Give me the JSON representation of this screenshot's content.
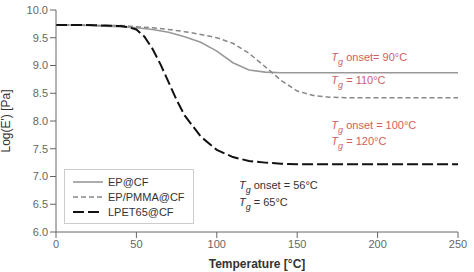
{
  "chart_data": {
    "type": "line",
    "xlabel": "Temperature [°C]",
    "ylabel": "Log(E') [Pa]",
    "xlim": [
      0,
      250
    ],
    "ylim": [
      6,
      10
    ],
    "xticks": [
      0,
      50,
      100,
      150,
      200,
      250
    ],
    "yticks": [
      {
        "value": 6,
        "label": "6.0"
      },
      {
        "value": 6.5,
        "label": "6.5"
      },
      {
        "value": 7,
        "label": "7.0"
      },
      {
        "value": 7.5,
        "label": "7.5"
      },
      {
        "value": 8,
        "label": "8.0"
      },
      {
        "value": 8.5,
        "label": "8.5"
      },
      {
        "value": 9,
        "label": "9.0"
      },
      {
        "value": 9.5,
        "label": "9.5"
      },
      {
        "value": 10,
        "label": "10.0"
      }
    ],
    "grid": false,
    "legend": "lower left",
    "series": [
      {
        "name": "EP@CF",
        "color": "#999999",
        "line_style": "solid",
        "x": [
          0,
          5,
          10,
          20,
          30,
          40,
          50,
          60,
          70,
          80,
          90,
          100,
          110,
          120,
          130,
          140,
          150,
          160,
          170,
          180,
          190,
          200,
          210,
          220,
          230,
          240,
          250
        ],
        "values": [
          9.73,
          9.73,
          9.73,
          9.72,
          9.71,
          9.7,
          9.68,
          9.65,
          9.6,
          9.52,
          9.42,
          9.26,
          9.05,
          8.92,
          8.88,
          8.87,
          8.87,
          8.87,
          8.87,
          8.87,
          8.87,
          8.87,
          8.87,
          8.87,
          8.87,
          8.87,
          8.87
        ]
      },
      {
        "name": "EP/PMMA@CF",
        "color": "#888888",
        "line_style": "dashed",
        "x": [
          0,
          5,
          10,
          20,
          30,
          40,
          50,
          60,
          70,
          80,
          90,
          100,
          110,
          120,
          130,
          140,
          150,
          160,
          170,
          180,
          190,
          200,
          210,
          220,
          230,
          240,
          250
        ],
        "values": [
          9.73,
          9.73,
          9.73,
          9.73,
          9.72,
          9.72,
          9.7,
          9.68,
          9.65,
          9.61,
          9.56,
          9.5,
          9.4,
          9.22,
          8.98,
          8.73,
          8.54,
          8.46,
          8.43,
          8.42,
          8.42,
          8.42,
          8.42,
          8.42,
          8.42,
          8.42,
          8.42
        ]
      },
      {
        "name": "LPET65@CF",
        "color": "#111111",
        "line_style": "longdash",
        "x": [
          0,
          5,
          10,
          20,
          30,
          40,
          45,
          50,
          55,
          60,
          65,
          70,
          75,
          80,
          90,
          100,
          110,
          120,
          130,
          140,
          150,
          160,
          170,
          180,
          190,
          200,
          210,
          220,
          230,
          240,
          250
        ],
        "values": [
          9.73,
          9.73,
          9.73,
          9.73,
          9.72,
          9.71,
          9.69,
          9.65,
          9.52,
          9.3,
          9.02,
          8.7,
          8.38,
          8.1,
          7.72,
          7.48,
          7.35,
          7.28,
          7.25,
          7.23,
          7.22,
          7.22,
          7.22,
          7.22,
          7.22,
          7.22,
          7.22,
          7.22,
          7.22,
          7.22,
          7.22
        ]
      }
    ],
    "annotations": [
      {
        "text": "T",
        "sub": "g",
        "rest": " onset= 90°C",
        "color": "#d06060"
      },
      {
        "text": "T",
        "sub": "g",
        "rest": " = 110°C",
        "color": "#d06060"
      },
      {
        "text": "T",
        "sub": "g",
        "rest": " onset = 100°C",
        "color": "#d06060"
      },
      {
        "text": "T",
        "sub": "g",
        "rest": " = 120°C",
        "color": "#d06060"
      },
      {
        "text": "T",
        "sub": "g",
        "rest": " onset = 56°C",
        "color": "#333333"
      },
      {
        "text": "T",
        "sub": "g",
        "rest": " = 65°C",
        "color": "#333333"
      }
    ]
  }
}
